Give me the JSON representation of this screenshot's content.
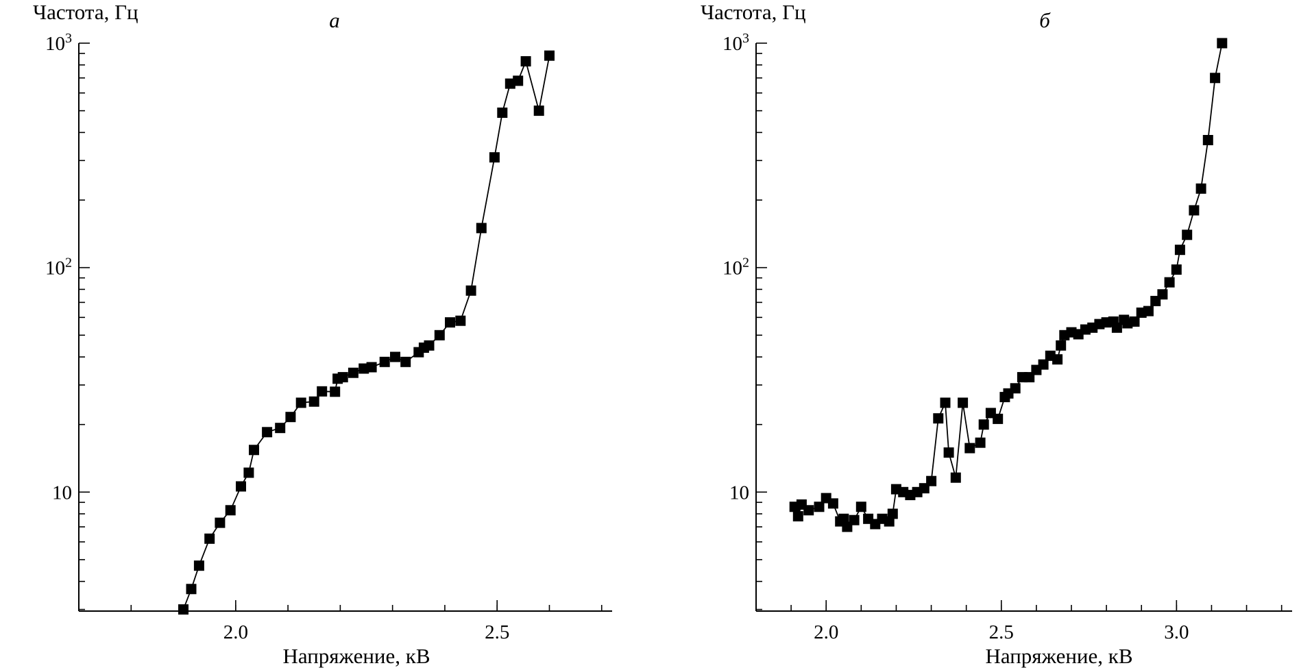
{
  "chart_data": [
    {
      "type": "line",
      "title": "а",
      "xlabel": "Напряжение, кВ",
      "ylabel": "Частота, Гц",
      "yscale": "log",
      "xlim": [
        1.7,
        2.72
      ],
      "ylim": [
        2.95,
        1000
      ],
      "grid": false,
      "x_ticks": [
        {
          "value": 2.0,
          "label": "2.0"
        },
        {
          "value": 2.5,
          "label": "2.5"
        }
      ],
      "x_minor_ticks": [
        1.8,
        1.9,
        2.0,
        2.1,
        2.2,
        2.3,
        2.4,
        2.5,
        2.6,
        2.7
      ],
      "y_ticks": [
        {
          "value": 10,
          "label": "10",
          "exp": ""
        },
        {
          "value": 100,
          "label": "10",
          "exp": "2"
        },
        {
          "value": 1000,
          "label": "10",
          "exp": "3"
        }
      ],
      "series": [
        {
          "marker": "square",
          "color": "#000000",
          "x": [
            1.9,
            1.915,
            1.93,
            1.95,
            1.97,
            1.99,
            2.01,
            2.025,
            2.035,
            2.06,
            2.085,
            2.105,
            2.125,
            2.15,
            2.165,
            2.19,
            2.195,
            2.205,
            2.225,
            2.245,
            2.26,
            2.285,
            2.305,
            2.325,
            2.35,
            2.36,
            2.37,
            2.39,
            2.41,
            2.43,
            2.45,
            2.47,
            2.495,
            2.51,
            2.525,
            2.54,
            2.555,
            2.58,
            2.6
          ],
          "y": [
            3.0,
            3.7,
            4.7,
            6.2,
            7.3,
            8.3,
            10.6,
            12.2,
            15.4,
            18.5,
            19.3,
            21.6,
            25.0,
            25.3,
            28.1,
            28.0,
            32.0,
            32.5,
            34.0,
            35.5,
            36.0,
            38.0,
            40.0,
            38.0,
            42.0,
            44.0,
            45.0,
            50.0,
            57.0,
            58.0,
            79.0,
            150.0,
            310.0,
            490.0,
            660.0,
            680.0,
            830.0,
            500.0,
            880.0
          ]
        }
      ]
    },
    {
      "type": "line",
      "title": "б",
      "xlabel": "Напряжение, кВ",
      "ylabel": "Частота, Гц",
      "yscale": "log",
      "xlim": [
        1.8,
        3.33
      ],
      "ylim": [
        2.95,
        1000
      ],
      "grid": false,
      "x_ticks": [
        {
          "value": 2.0,
          "label": "2.0"
        },
        {
          "value": 2.5,
          "label": "2.5"
        },
        {
          "value": 3.0,
          "label": "3.0"
        }
      ],
      "x_minor_ticks": [
        1.8,
        1.9,
        2.0,
        2.1,
        2.2,
        2.3,
        2.4,
        2.5,
        2.6,
        2.7,
        2.8,
        2.9,
        3.0,
        3.1,
        3.2,
        3.3
      ],
      "y_ticks": [
        {
          "value": 10,
          "label": "10",
          "exp": ""
        },
        {
          "value": 100,
          "label": "10",
          "exp": "2"
        },
        {
          "value": 1000,
          "label": "10",
          "exp": "3"
        }
      ],
      "series": [
        {
          "marker": "square",
          "color": "#000000",
          "x": [
            1.91,
            1.92,
            1.93,
            1.95,
            1.98,
            2.0,
            2.02,
            2.04,
            2.05,
            2.06,
            2.08,
            2.1,
            2.12,
            2.14,
            2.16,
            2.18,
            2.19,
            2.2,
            2.22,
            2.24,
            2.26,
            2.28,
            2.3,
            2.32,
            2.34,
            2.35,
            2.37,
            2.39,
            2.41,
            2.44,
            2.45,
            2.47,
            2.49,
            2.51,
            2.52,
            2.54,
            2.56,
            2.58,
            2.6,
            2.62,
            2.64,
            2.66,
            2.67,
            2.68,
            2.7,
            2.72,
            2.74,
            2.76,
            2.78,
            2.8,
            2.82,
            2.83,
            2.85,
            2.86,
            2.88,
            2.9,
            2.92,
            2.94,
            2.96,
            2.98,
            3.0,
            3.01,
            3.03,
            3.05,
            3.07,
            3.09,
            3.11,
            3.13
          ],
          "y": [
            8.6,
            7.8,
            8.8,
            8.3,
            8.6,
            9.4,
            8.9,
            7.4,
            7.6,
            7.0,
            7.5,
            8.6,
            7.6,
            7.2,
            7.6,
            7.4,
            8.0,
            10.3,
            10.0,
            9.7,
            10.0,
            10.4,
            11.2,
            21.3,
            25.0,
            15.0,
            11.6,
            25.0,
            15.7,
            16.6,
            20.0,
            22.5,
            21.2,
            26.5,
            27.5,
            29.0,
            32.5,
            32.5,
            35.0,
            37.0,
            40.5,
            39.0,
            45.0,
            50.0,
            51.5,
            50.5,
            53.0,
            54.0,
            56.0,
            57.0,
            57.5,
            54.0,
            58.5,
            56.5,
            57.5,
            63.0,
            64.0,
            71.0,
            76.0,
            86.0,
            98.0,
            120.0,
            140.0,
            180.0,
            225.0,
            370.0,
            700.0,
            1000.0
          ]
        }
      ]
    }
  ]
}
